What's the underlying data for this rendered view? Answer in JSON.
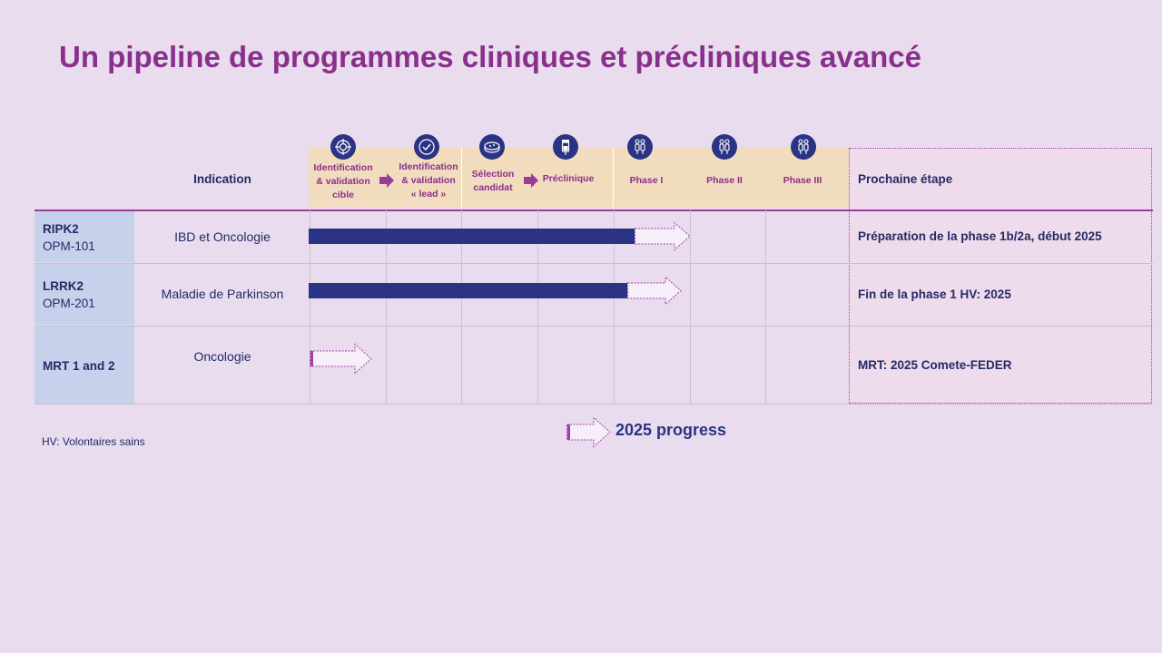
{
  "slide": {
    "title": "Un pipeline de programmes cliniques et précliniques avancé"
  },
  "header": {
    "indication": "Indication",
    "next_step": "Prochaine étape",
    "stages": [
      {
        "label_lines": [
          "Identification",
          "& validation",
          "cible"
        ],
        "icon": "target-icon"
      },
      {
        "label_lines": [
          "Identification",
          "& validation",
          "« lead »"
        ],
        "icon": "check-circle-icon"
      },
      {
        "label_lines": [
          "Sélection",
          "candidat"
        ],
        "icon": "petri-dish-icon"
      },
      {
        "label_lines": [
          "Préclinique"
        ],
        "icon": "flask-icon"
      },
      {
        "label_lines": [
          "Phase I"
        ],
        "icon": "people-icon"
      },
      {
        "label_lines": [
          "Phase II"
        ],
        "icon": "people-icon"
      },
      {
        "label_lines": [
          "Phase III"
        ],
        "icon": "people-icon"
      }
    ]
  },
  "programs": [
    {
      "name": "RIPK2",
      "code": "OPM-101",
      "indication": "IBD et Oncologie",
      "next_step": "Préparation de la phase 1b/2a, début 2025",
      "completed_through": "Phase I (partial)",
      "progress_2025_to": "Phase I"
    },
    {
      "name": "LRRK2",
      "code": "OPM-201",
      "indication": "Maladie de Parkinson",
      "next_step": "Fin de la phase 1 HV:  2025",
      "completed_through": "Phase I (partial)",
      "progress_2025_to": "Phase I"
    },
    {
      "name": "MRT 1 and 2",
      "code": "",
      "indication": "Oncologie",
      "next_step": "MRT: 2025  Comete-FEDER",
      "completed_through": "",
      "progress_2025_to": "Identification & validation cible"
    }
  ],
  "footnote": "HV: Volontaires sains",
  "legend": {
    "label": "2025 progress",
    "icon": "hollow-arrow-icon"
  },
  "colors": {
    "title": "#8a2f8c",
    "bar": "#2b3384",
    "stage_band": "#f2dcbe",
    "name_cell": "#c6d2ec",
    "background": "#e8dcee"
  }
}
